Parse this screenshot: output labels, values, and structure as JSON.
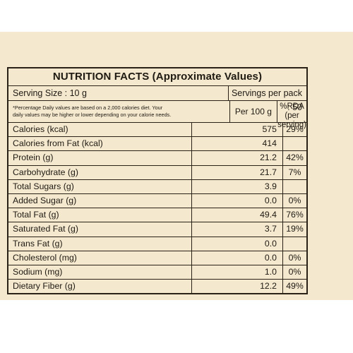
{
  "title": "NUTRITION FACTS (Approximate Values)",
  "serving_size": "Serving Size : 10 g",
  "servings_per_pack": "Servings per pack : 50",
  "note_line1": "*Percentage Daily values are based on a 2,000 calories diet. Your",
  "note_line2": "daily values may be higher or lower depending on your calorie needs.",
  "col_per100": "Per 100 g",
  "col_rda1": "%RDA",
  "col_rda2": "(per serving)",
  "rows": [
    {
      "name": "Calories (kcal)",
      "value": "575",
      "rda": "29%"
    },
    {
      "name": "Calories from Fat (kcal)",
      "value": "414",
      "rda": ""
    },
    {
      "name": "Protein (g)",
      "value": "21.2",
      "rda": "42%"
    },
    {
      "name": "Carbohydrate (g)",
      "value": "21.7",
      "rda": "7%"
    },
    {
      "name": "Total Sugars (g)",
      "value": "3.9",
      "rda": ""
    },
    {
      "name": "Added Sugar (g)",
      "value": "0.0",
      "rda": "0%"
    },
    {
      "name": "Total Fat (g)",
      "value": "49.4",
      "rda": "76%"
    },
    {
      "name": "Saturated Fat (g)",
      "value": "3.7",
      "rda": "19%"
    },
    {
      "name": "Trans Fat (g)",
      "value": "0.0",
      "rda": ""
    },
    {
      "name": "Cholesterol (mg)",
      "value": "0.0",
      "rda": "0%"
    },
    {
      "name": "Sodium (mg)",
      "value": "1.0",
      "rda": "0%"
    },
    {
      "name": "Dietary Fiber (g)",
      "value": "12.2",
      "rda": "49%"
    }
  ]
}
